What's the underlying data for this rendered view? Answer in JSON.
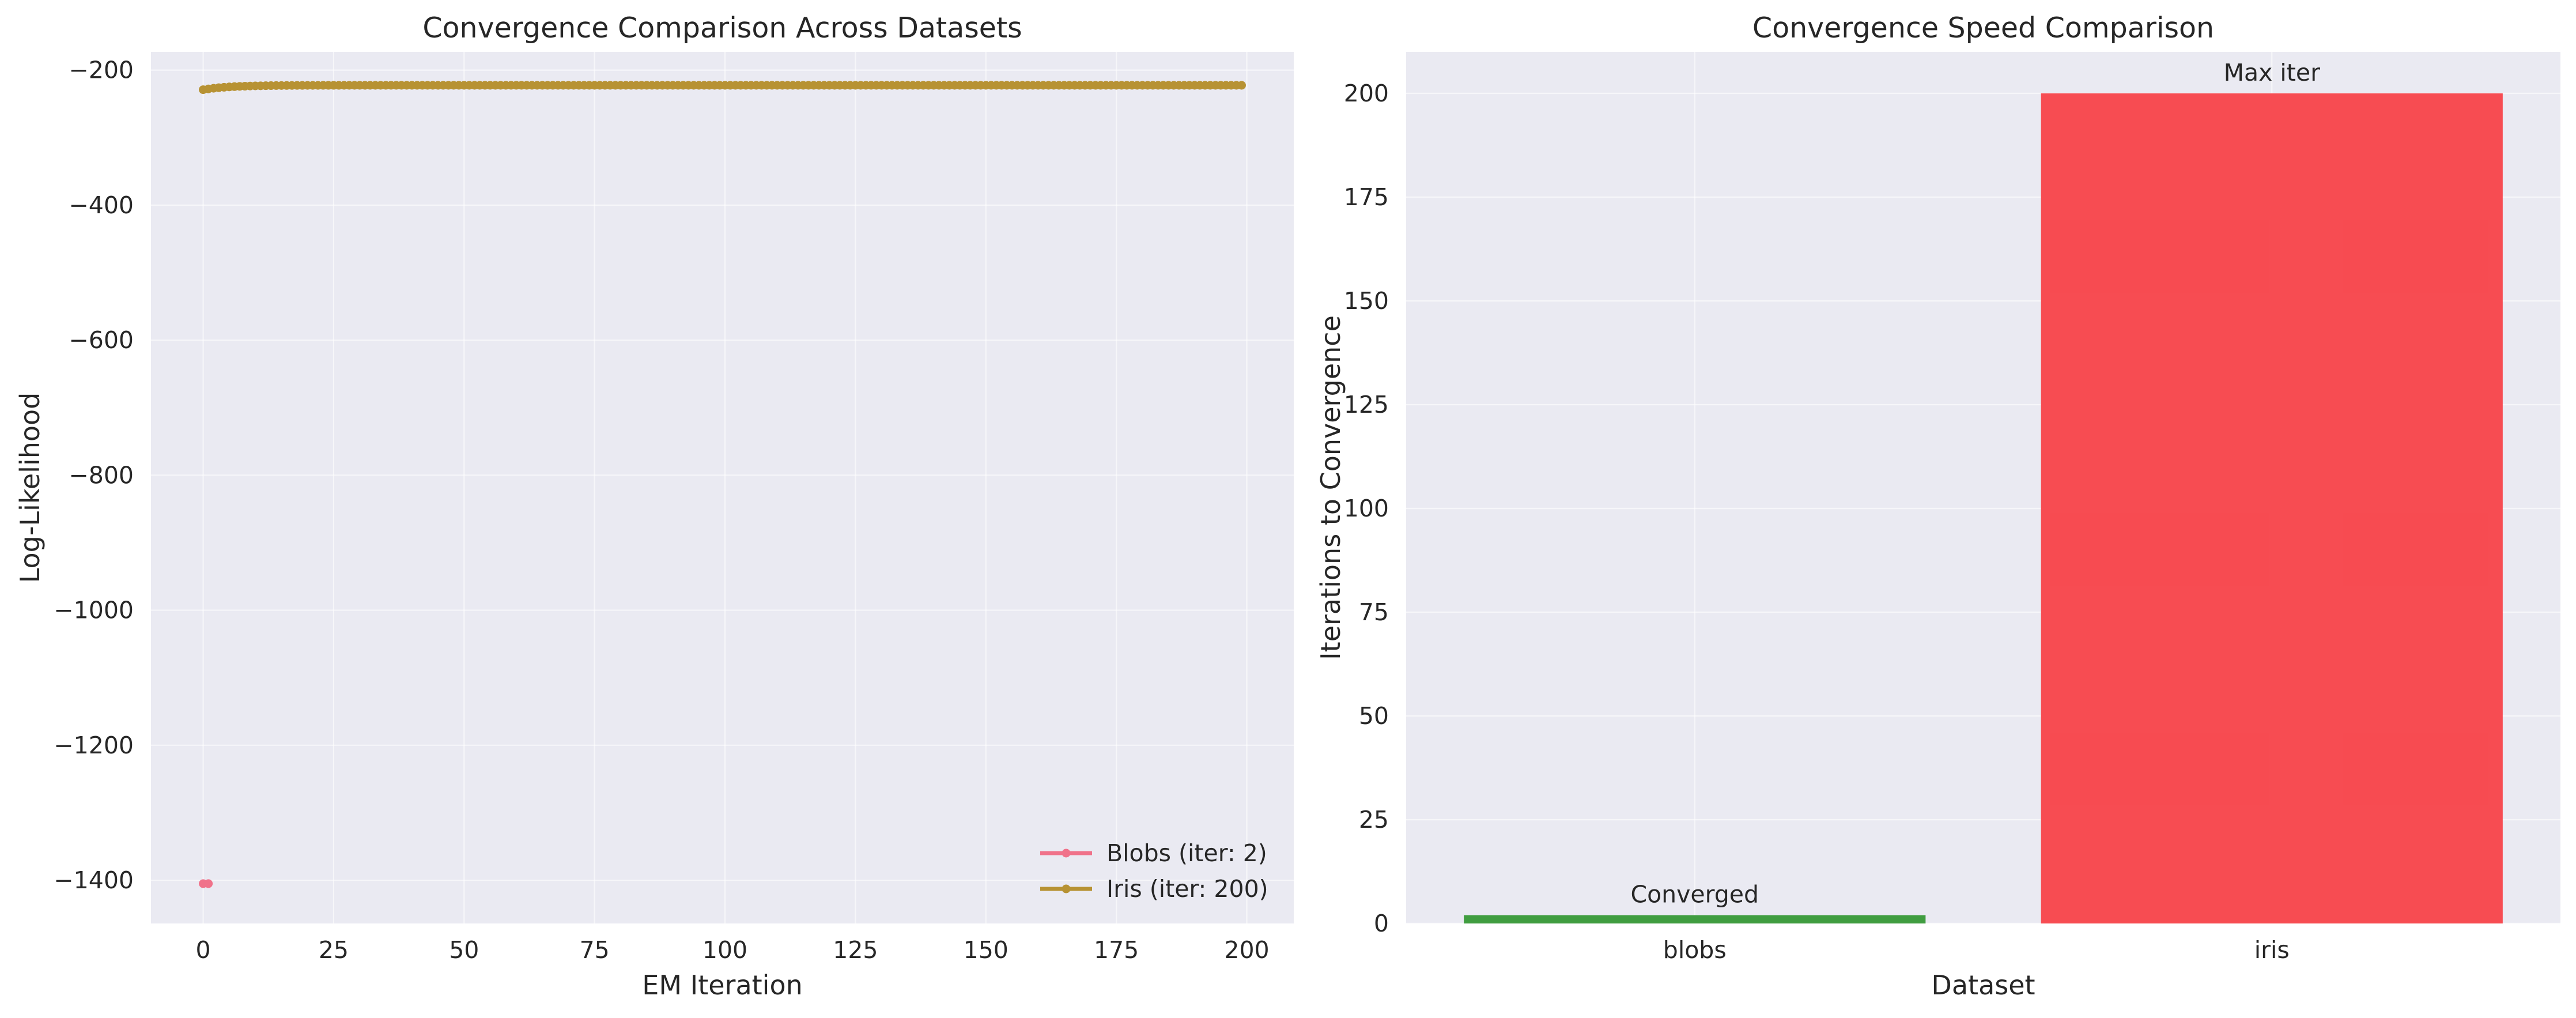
{
  "chart_data": [
    {
      "type": "line",
      "title": "Convergence Comparison Across Datasets",
      "xlabel": "EM Iteration",
      "ylabel": "Log-Likelihood",
      "xlim": [
        -10,
        209
      ],
      "ylim": [
        -1464,
        -173
      ],
      "xticks": [
        0,
        25,
        50,
        75,
        100,
        125,
        150,
        175,
        200
      ],
      "xtick_labels": [
        "0",
        "25",
        "50",
        "75",
        "100",
        "125",
        "150",
        "175",
        "200"
      ],
      "yticks": [
        -200,
        -400,
        -600,
        -800,
        -1000,
        -1200,
        -1400
      ],
      "ytick_labels": [
        "−200",
        "−400",
        "−600",
        "−800",
        "−1000",
        "−1200",
        "−1400"
      ],
      "grid": true,
      "legend": "lower-right",
      "series": [
        {
          "name": "Blobs (iter: 2)",
          "color": "#f0728a",
          "x": [
            0,
            1
          ],
          "y": [
            -1405,
            -1405
          ]
        },
        {
          "name": "Iris (iter: 200)",
          "color": "#b79233",
          "x_start": 0,
          "x_end": 199,
          "curve": {
            "start": -229,
            "plateau": -222.5,
            "reach_at": 20
          }
        }
      ]
    },
    {
      "type": "bar",
      "title": "Convergence Speed Comparison",
      "xlabel": "Dataset",
      "ylabel": "Iterations to Convergence",
      "ylim": [
        0,
        210
      ],
      "yticks": [
        0,
        25,
        50,
        75,
        100,
        125,
        150,
        175,
        200
      ],
      "ytick_labels": [
        "0",
        "25",
        "50",
        "75",
        "100",
        "125",
        "150",
        "175",
        "200"
      ],
      "grid": true,
      "categories": [
        "blobs",
        "iris"
      ],
      "values": [
        2,
        200
      ],
      "colors": [
        "#3a9a3a",
        "#f7464c"
      ],
      "annotations": [
        "Converged",
        "Max iter"
      ]
    }
  ]
}
